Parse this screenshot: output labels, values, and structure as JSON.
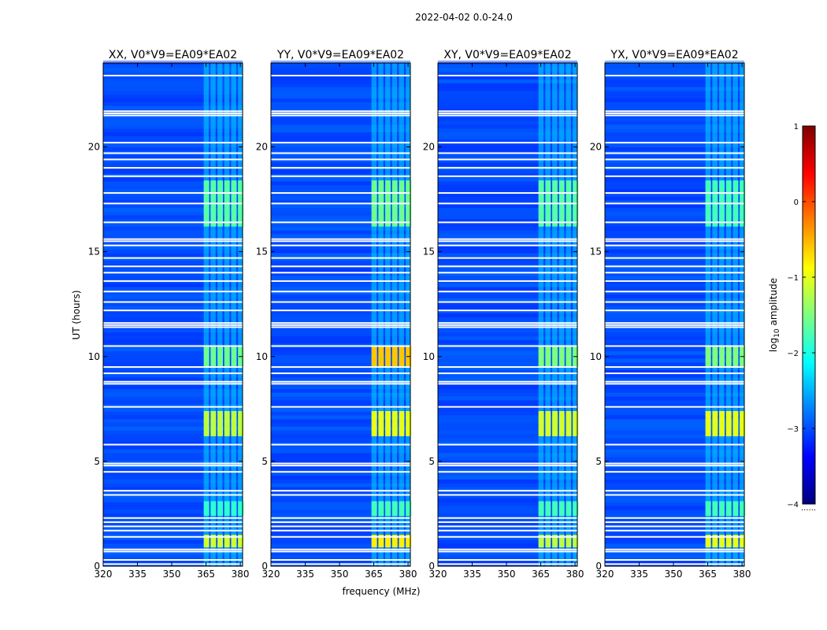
{
  "chart_data": {
    "type": "heatmap",
    "title": "2022-04-02 0.0-24.0",
    "xlabel": "frequency (MHz)",
    "ylabel": "UT (hours)",
    "xlim": [
      320,
      381
    ],
    "ylim": [
      0,
      24
    ],
    "xticks": [
      "320",
      "335",
      "350",
      "365",
      "380"
    ],
    "yticks": [
      "0",
      "5",
      "10",
      "15",
      "20"
    ],
    "colorbar": {
      "label": "log10 amplitude",
      "label_base": "log",
      "label_sub": "10",
      "label_rest": " amplitude",
      "range": [
        -4,
        1
      ],
      "ticks": [
        "−4",
        "−3",
        "−2",
        "−1",
        "0",
        "1"
      ],
      "under_label": "......",
      "colormap": [
        "#00007f",
        "#0000ff",
        "#007fff",
        "#00ffff",
        "#7fff7f",
        "#ffff00",
        "#ff7f00",
        "#ff0000",
        "#7f0000"
      ]
    },
    "bright_band_mhz": [
      364,
      380
    ],
    "background_level_log10": -3,
    "flagged_hours": [
      23.4,
      21.7,
      21.6,
      21.5,
      20.2,
      19.7,
      19.4,
      19.0,
      18.6,
      17.8,
      17.3,
      16.4,
      15.6,
      15.5,
      15.3,
      14.7,
      14.3,
      14.0,
      13.6,
      13.1,
      12.6,
      12.2,
      11.6,
      11.5,
      11.4,
      10.5,
      9.5,
      9.2,
      8.8,
      8.7,
      7.6,
      5.8,
      4.9,
      4.8,
      4.5,
      3.6,
      3.4,
      2.3,
      2.1,
      1.9,
      1.7,
      1.4,
      0.8,
      0.7,
      0.3,
      0.1
    ],
    "panels": [
      {
        "title": "XX, V0*V9=EA09*EA02",
        "bursts": [
          {
            "t0": 16.2,
            "t1": 18.4,
            "log10": -1.7
          },
          {
            "t0": 9.5,
            "t1": 10.5,
            "log10": -1.6
          },
          {
            "t0": 6.2,
            "t1": 7.4,
            "log10": -1.2
          },
          {
            "t0": 2.4,
            "t1": 3.1,
            "log10": -1.9
          },
          {
            "t0": 0.9,
            "t1": 1.5,
            "log10": -1.1
          }
        ]
      },
      {
        "title": "YY, V0*V9=EA09*EA02",
        "bursts": [
          {
            "t0": 16.2,
            "t1": 18.4,
            "log10": -1.6
          },
          {
            "t0": 9.5,
            "t1": 10.5,
            "log10": -0.6
          },
          {
            "t0": 6.2,
            "t1": 7.4,
            "log10": -1.0
          },
          {
            "t0": 2.4,
            "t1": 3.1,
            "log10": -1.8
          },
          {
            "t0": 0.9,
            "t1": 1.5,
            "log10": -0.8
          }
        ]
      },
      {
        "title": "XY, V0*V9=EA09*EA02",
        "bursts": [
          {
            "t0": 16.2,
            "t1": 18.4,
            "log10": -1.7
          },
          {
            "t0": 9.5,
            "t1": 10.5,
            "log10": -1.5
          },
          {
            "t0": 6.2,
            "t1": 7.4,
            "log10": -1.1
          },
          {
            "t0": 2.4,
            "t1": 3.1,
            "log10": -1.8
          },
          {
            "t0": 0.9,
            "t1": 1.5,
            "log10": -1.2
          }
        ]
      },
      {
        "title": "YX, V0*V9=EA09*EA02",
        "bursts": [
          {
            "t0": 16.2,
            "t1": 18.4,
            "log10": -1.8
          },
          {
            "t0": 9.5,
            "t1": 10.5,
            "log10": -1.5
          },
          {
            "t0": 6.2,
            "t1": 7.4,
            "log10": -1.0
          },
          {
            "t0": 2.4,
            "t1": 3.1,
            "log10": -1.8
          },
          {
            "t0": 0.9,
            "t1": 1.5,
            "log10": -1.0
          }
        ]
      }
    ]
  }
}
